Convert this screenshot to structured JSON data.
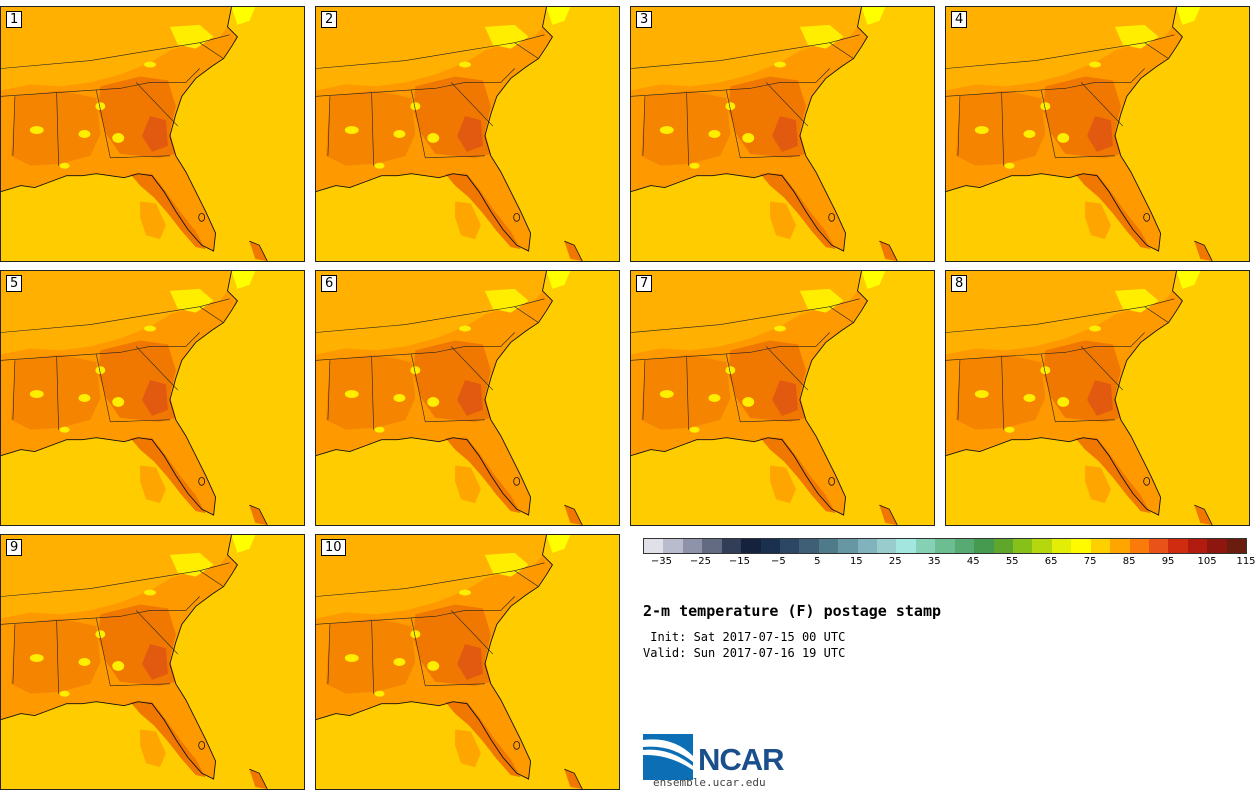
{
  "panels": [
    {
      "label": "1"
    },
    {
      "label": "2"
    },
    {
      "label": "3"
    },
    {
      "label": "4"
    },
    {
      "label": "5"
    },
    {
      "label": "6"
    },
    {
      "label": "7"
    },
    {
      "label": "8"
    },
    {
      "label": "9"
    },
    {
      "label": "10"
    }
  ],
  "colorbar": {
    "colors": [
      "#dfe0e8",
      "#b9bccc",
      "#8e93a9",
      "#636b83",
      "#323d57",
      "#14223e",
      "#1b2f4e",
      "#2c4763",
      "#3e5f75",
      "#4f7a8a",
      "#6797a3",
      "#80b3bb",
      "#99cccc",
      "#a2e6df",
      "#86d1b6",
      "#6dbd93",
      "#58aa73",
      "#459a4f",
      "#5ea62c",
      "#86c018",
      "#b4d70d",
      "#e2ee05",
      "#fffa00",
      "#ffd000",
      "#ffa500",
      "#fb7b0a",
      "#e9531a",
      "#d02d10",
      "#b21b10",
      "#8d160e",
      "#6a1c0e"
    ],
    "ticks": [
      "−35",
      "−25",
      "−15",
      "−5",
      "5",
      "15",
      "25",
      "35",
      "45",
      "55",
      "65",
      "75",
      "85",
      "95",
      "105",
      "115"
    ],
    "accent": "#ff8000"
  },
  "title": "2-m temperature (F) postage stamp",
  "init": " Init: Sat 2017-07-15 00 UTC",
  "valid": "Valid: Sun 2017-07-16 19 UTC",
  "logo": {
    "name": "NCAR",
    "url": "ensemble.ucar.edu"
  }
}
